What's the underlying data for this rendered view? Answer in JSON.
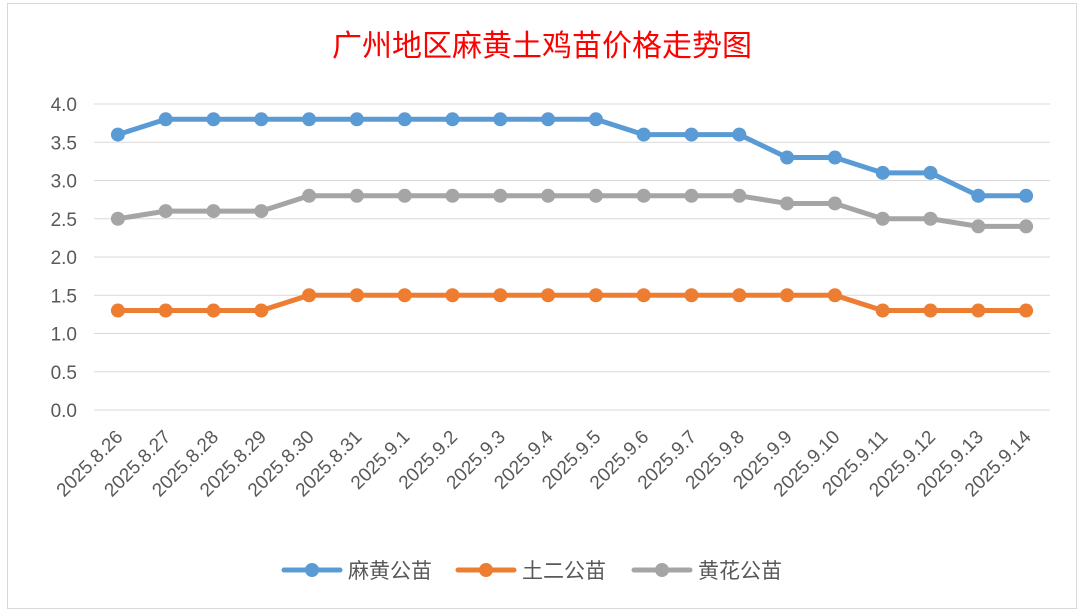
{
  "chart_data": {
    "type": "line",
    "title": "广州地区麻黄土鸡苗价格走势图",
    "xlabel": "",
    "ylabel": "",
    "categories": [
      "2025.8.26",
      "2025.8.27",
      "2025.8.28",
      "2025.8.29",
      "2025.8.30",
      "2025.8.31",
      "2025.9.1",
      "2025.9.2",
      "2025.9.3",
      "2025.9.4",
      "2025.9.5",
      "2025.9.6",
      "2025.9.7",
      "2025.9.8",
      "2025.9.9",
      "2025.9.10",
      "2025.9.11",
      "2025.9.12",
      "2025.9.13",
      "2025.9.14"
    ],
    "ylim": [
      0,
      4
    ],
    "yticks": [
      "0.0",
      "0.5",
      "1.0",
      "1.5",
      "2.0",
      "2.5",
      "3.0",
      "3.5",
      "4.0"
    ],
    "grid": true,
    "legend_position": "bottom",
    "series": [
      {
        "name": "麻黄公苗",
        "color": "#5b9bd5",
        "values": [
          3.6,
          3.8,
          3.8,
          3.8,
          3.8,
          3.8,
          3.8,
          3.8,
          3.8,
          3.8,
          3.8,
          3.6,
          3.6,
          3.6,
          3.3,
          3.3,
          3.1,
          3.1,
          2.8,
          2.8
        ]
      },
      {
        "name": "土二公苗",
        "color": "#ed7d31",
        "values": [
          1.3,
          1.3,
          1.3,
          1.3,
          1.5,
          1.5,
          1.5,
          1.5,
          1.5,
          1.5,
          1.5,
          1.5,
          1.5,
          1.5,
          1.5,
          1.5,
          1.3,
          1.3,
          1.3,
          1.3
        ]
      },
      {
        "name": "黄花公苗",
        "color": "#a5a5a5",
        "values": [
          2.5,
          2.6,
          2.6,
          2.6,
          2.8,
          2.8,
          2.8,
          2.8,
          2.8,
          2.8,
          2.8,
          2.8,
          2.8,
          2.8,
          2.7,
          2.7,
          2.5,
          2.5,
          2.4,
          2.4
        ]
      }
    ]
  }
}
